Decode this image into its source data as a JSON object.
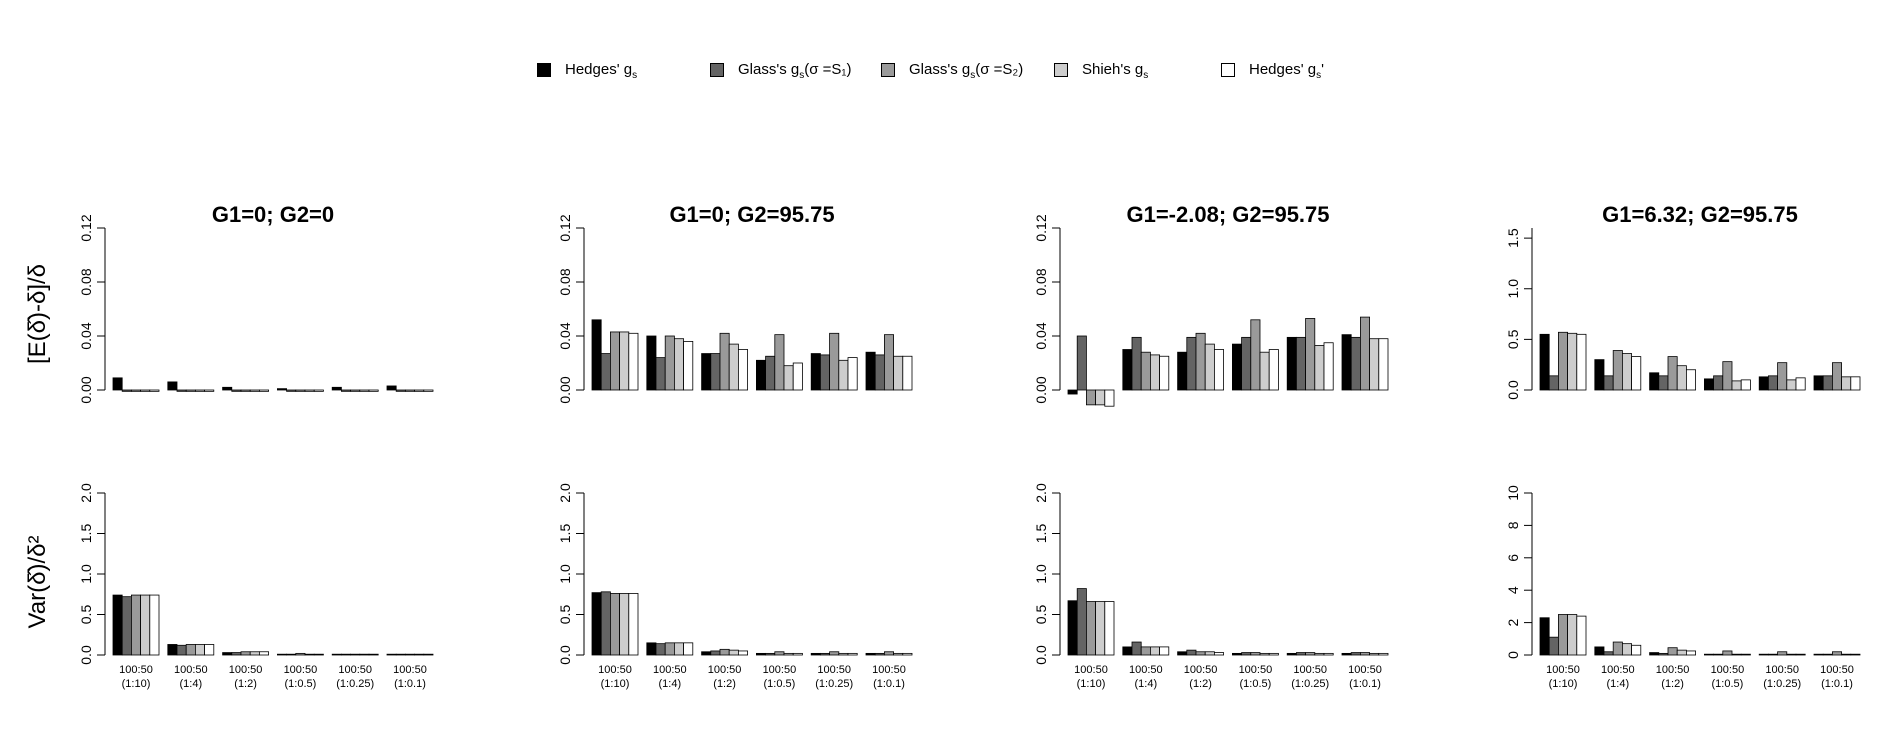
{
  "legend": [
    {
      "label": "Hedges' g",
      "sub": "s",
      "suffix": "",
      "color": "#000000"
    },
    {
      "label": "Glass's g",
      "sub": "s",
      "suffix": "(σ =S₁)",
      "color": "#646464"
    },
    {
      "label": "Glass's g",
      "sub": "s",
      "suffix": "(σ =S₂)",
      "color": "#9a9a9a"
    },
    {
      "label": "Shieh's g",
      "sub": "s",
      "suffix": "",
      "color": "#cdcdcd"
    },
    {
      "label": "Hedges' g",
      "sub": "s",
      "suffix": "'",
      "color": "#ffffff"
    }
  ],
  "row_labels": {
    "bias": "[E(δ̂)-δ]/δ",
    "variance": "Var(δ̂)/δ²"
  },
  "chart_data": [
    {
      "type": "bar",
      "title": "G1=0; G2=0",
      "row": "bias",
      "categories": [
        "100:50 (1:10)",
        "100:50 (1:4)",
        "100:50 (1:2)",
        "100:50 (1:0.5)",
        "100:50 (1:0.25)",
        "100:50 (1:0.1)"
      ],
      "yticks": [
        "0.00",
        "0.04",
        "0.08",
        "0.12"
      ],
      "ylim": [
        0,
        0.12
      ],
      "series": [
        {
          "name": "Hedges' gs",
          "values": [
            0.009,
            0.006,
            0.002,
            0.001,
            0.002,
            0.003
          ]
        },
        {
          "name": "Glass's gs(σ =S1)",
          "values": [
            -0.001,
            -0.001,
            -0.001,
            -0.001,
            -0.001,
            -0.001
          ]
        },
        {
          "name": "Glass's gs(σ =S2)",
          "values": [
            -0.001,
            -0.001,
            -0.001,
            -0.001,
            -0.001,
            -0.001
          ]
        },
        {
          "name": "Shieh's gs",
          "values": [
            -0.001,
            -0.001,
            -0.001,
            -0.001,
            -0.001,
            -0.001
          ]
        },
        {
          "name": "Hedges' gs'",
          "values": [
            -0.001,
            -0.001,
            -0.001,
            -0.001,
            -0.001,
            -0.001
          ]
        }
      ]
    },
    {
      "type": "bar",
      "title": "G1=0; G2=95.75",
      "row": "bias",
      "categories": [
        "100:50 (1:10)",
        "100:50 (1:4)",
        "100:50 (1:2)",
        "100:50 (1:0.5)",
        "100:50 (1:0.25)",
        "100:50 (1:0.1)"
      ],
      "yticks": [
        "0.00",
        "0.04",
        "0.08",
        "0.12"
      ],
      "ylim": [
        0,
        0.12
      ],
      "series": [
        {
          "name": "Hedges' gs",
          "values": [
            0.052,
            0.04,
            0.027,
            0.022,
            0.027,
            0.028
          ]
        },
        {
          "name": "Glass's gs(σ =S1)",
          "values": [
            0.027,
            0.024,
            0.027,
            0.025,
            0.026,
            0.026
          ]
        },
        {
          "name": "Glass's gs(σ =S2)",
          "values": [
            0.043,
            0.04,
            0.042,
            0.041,
            0.042,
            0.041
          ]
        },
        {
          "name": "Shieh's gs",
          "values": [
            0.043,
            0.038,
            0.034,
            0.018,
            0.022,
            0.025
          ]
        },
        {
          "name": "Hedges' gs'",
          "values": [
            0.042,
            0.036,
            0.03,
            0.02,
            0.024,
            0.025
          ]
        }
      ]
    },
    {
      "type": "bar",
      "title": "G1=-2.08; G2=95.75",
      "row": "bias",
      "categories": [
        "100:50 (1:10)",
        "100:50 (1:4)",
        "100:50 (1:2)",
        "100:50 (1:0.5)",
        "100:50 (1:0.25)",
        "100:50 (1:0.1)"
      ],
      "yticks": [
        "0.00",
        "0.04",
        "0.08",
        "0.12"
      ],
      "ylim": [
        0,
        0.12
      ],
      "series": [
        {
          "name": "Hedges' gs",
          "values": [
            -0.003,
            0.03,
            0.028,
            0.034,
            0.039,
            0.041
          ]
        },
        {
          "name": "Glass's gs(σ =S1)",
          "values": [
            0.04,
            0.039,
            0.039,
            0.039,
            0.039,
            0.039
          ]
        },
        {
          "name": "Glass's gs(σ =S2)",
          "values": [
            -0.011,
            0.028,
            0.042,
            0.052,
            0.053,
            0.054
          ]
        },
        {
          "name": "Shieh's gs",
          "values": [
            -0.011,
            0.026,
            0.034,
            0.028,
            0.033,
            0.038
          ]
        },
        {
          "name": "Hedges' gs'",
          "values": [
            -0.012,
            0.025,
            0.03,
            0.03,
            0.035,
            0.038
          ]
        }
      ]
    },
    {
      "type": "bar",
      "title": "G1=6.32; G2=95.75",
      "row": "bias",
      "categories": [
        "100:50 (1:10)",
        "100:50 (1:4)",
        "100:50 (1:2)",
        "100:50 (1:0.5)",
        "100:50 (1:0.25)",
        "100:50 (1:0.1)"
      ],
      "yticks": [
        "0.0",
        "0.5",
        "1.0",
        "1.5"
      ],
      "ylim": [
        0,
        1.6
      ],
      "series": [
        {
          "name": "Hedges' gs",
          "values": [
            0.55,
            0.3,
            0.17,
            0.11,
            0.13,
            0.14
          ]
        },
        {
          "name": "Glass's gs(σ =S1)",
          "values": [
            0.14,
            0.14,
            0.14,
            0.14,
            0.14,
            0.14
          ]
        },
        {
          "name": "Glass's gs(σ =S2)",
          "values": [
            0.57,
            0.39,
            0.33,
            0.28,
            0.27,
            0.27
          ]
        },
        {
          "name": "Shieh's gs",
          "values": [
            0.56,
            0.36,
            0.24,
            0.09,
            0.1,
            0.13
          ]
        },
        {
          "name": "Hedges' gs'",
          "values": [
            0.55,
            0.33,
            0.2,
            0.1,
            0.12,
            0.13
          ]
        }
      ]
    },
    {
      "type": "bar",
      "title": "",
      "row": "variance",
      "categories": [
        "100:50 (1:10)",
        "100:50 (1:4)",
        "100:50 (1:2)",
        "100:50 (1:0.5)",
        "100:50 (1:0.25)",
        "100:50 (1:0.1)"
      ],
      "yticks": [
        "0.0",
        "0.5",
        "1.0",
        "1.5",
        "2.0"
      ],
      "ylim": [
        0,
        2.0
      ],
      "series": [
        {
          "name": "Hedges' gs",
          "values": [
            0.74,
            0.13,
            0.03,
            0.01,
            0.01,
            0.01
          ]
        },
        {
          "name": "Glass's gs(σ =S1)",
          "values": [
            0.72,
            0.12,
            0.03,
            0.01,
            0.01,
            0.01
          ]
        },
        {
          "name": "Glass's gs(σ =S2)",
          "values": [
            0.74,
            0.13,
            0.04,
            0.02,
            0.01,
            0.01
          ]
        },
        {
          "name": "Shieh's gs",
          "values": [
            0.74,
            0.13,
            0.04,
            0.01,
            0.01,
            0.01
          ]
        },
        {
          "name": "Hedges' gs'",
          "values": [
            0.74,
            0.13,
            0.04,
            0.01,
            0.01,
            0.01
          ]
        }
      ]
    },
    {
      "type": "bar",
      "title": "",
      "row": "variance",
      "categories": [
        "100:50 (1:10)",
        "100:50 (1:4)",
        "100:50 (1:2)",
        "100:50 (1:0.5)",
        "100:50 (1:0.25)",
        "100:50 (1:0.1)"
      ],
      "yticks": [
        "0.0",
        "0.5",
        "1.0",
        "1.5",
        "2.0"
      ],
      "ylim": [
        0,
        2.0
      ],
      "series": [
        {
          "name": "Hedges' gs",
          "values": [
            0.77,
            0.15,
            0.04,
            0.02,
            0.02,
            0.02
          ]
        },
        {
          "name": "Glass's gs(σ =S1)",
          "values": [
            0.78,
            0.14,
            0.05,
            0.02,
            0.02,
            0.02
          ]
        },
        {
          "name": "Glass's gs(σ =S2)",
          "values": [
            0.76,
            0.15,
            0.07,
            0.04,
            0.04,
            0.04
          ]
        },
        {
          "name": "Shieh's gs",
          "values": [
            0.76,
            0.15,
            0.06,
            0.02,
            0.02,
            0.02
          ]
        },
        {
          "name": "Hedges' gs'",
          "values": [
            0.76,
            0.15,
            0.05,
            0.02,
            0.02,
            0.02
          ]
        }
      ]
    },
    {
      "type": "bar",
      "title": "",
      "row": "variance",
      "categories": [
        "100:50 (1:10)",
        "100:50 (1:4)",
        "100:50 (1:2)",
        "100:50 (1:0.5)",
        "100:50 (1:0.25)",
        "100:50 (1:0.1)"
      ],
      "yticks": [
        "0.0",
        "0.5",
        "1.0",
        "1.5",
        "2.0"
      ],
      "ylim": [
        0,
        2.0
      ],
      "series": [
        {
          "name": "Hedges' gs",
          "values": [
            0.67,
            0.1,
            0.04,
            0.02,
            0.02,
            0.02
          ]
        },
        {
          "name": "Glass's gs(σ =S1)",
          "values": [
            0.82,
            0.16,
            0.06,
            0.03,
            0.03,
            0.03
          ]
        },
        {
          "name": "Glass's gs(σ =S2)",
          "values": [
            0.66,
            0.1,
            0.04,
            0.03,
            0.03,
            0.03
          ]
        },
        {
          "name": "Shieh's gs",
          "values": [
            0.66,
            0.1,
            0.04,
            0.02,
            0.02,
            0.02
          ]
        },
        {
          "name": "Hedges' gs'",
          "values": [
            0.66,
            0.1,
            0.03,
            0.02,
            0.02,
            0.02
          ]
        }
      ]
    },
    {
      "type": "bar",
      "title": "",
      "row": "variance",
      "categories": [
        "100:50 (1:10)",
        "100:50 (1:4)",
        "100:50 (1:2)",
        "100:50 (1:0.5)",
        "100:50 (1:0.25)",
        "100:50 (1:0.1)"
      ],
      "yticks": [
        "0",
        "2",
        "4",
        "6",
        "8",
        "10"
      ],
      "ylim": [
        0,
        10
      ],
      "series": [
        {
          "name": "Hedges' gs",
          "values": [
            2.3,
            0.5,
            0.15,
            0.05,
            0.05,
            0.05
          ]
        },
        {
          "name": "Glass's gs(σ =S1)",
          "values": [
            1.1,
            0.2,
            0.1,
            0.05,
            0.05,
            0.05
          ]
        },
        {
          "name": "Glass's gs(σ =S2)",
          "values": [
            2.5,
            0.8,
            0.45,
            0.25,
            0.2,
            0.2
          ]
        },
        {
          "name": "Shieh's gs",
          "values": [
            2.5,
            0.7,
            0.3,
            0.05,
            0.05,
            0.05
          ]
        },
        {
          "name": "Hedges' gs'",
          "values": [
            2.4,
            0.6,
            0.25,
            0.05,
            0.05,
            0.05
          ]
        }
      ]
    }
  ]
}
